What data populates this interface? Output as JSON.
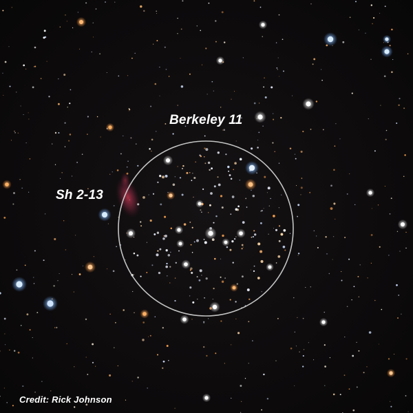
{
  "image": {
    "labels": {
      "cluster": "Berkeley 11",
      "nebula": "Sh 2-13"
    },
    "credit": "Credit: Rick Johnson"
  },
  "colors": {
    "sky": "#0d0b0c",
    "circle": "#d8d8d8",
    "label_text": "#ffffff",
    "nebula": "#b0304a"
  }
}
